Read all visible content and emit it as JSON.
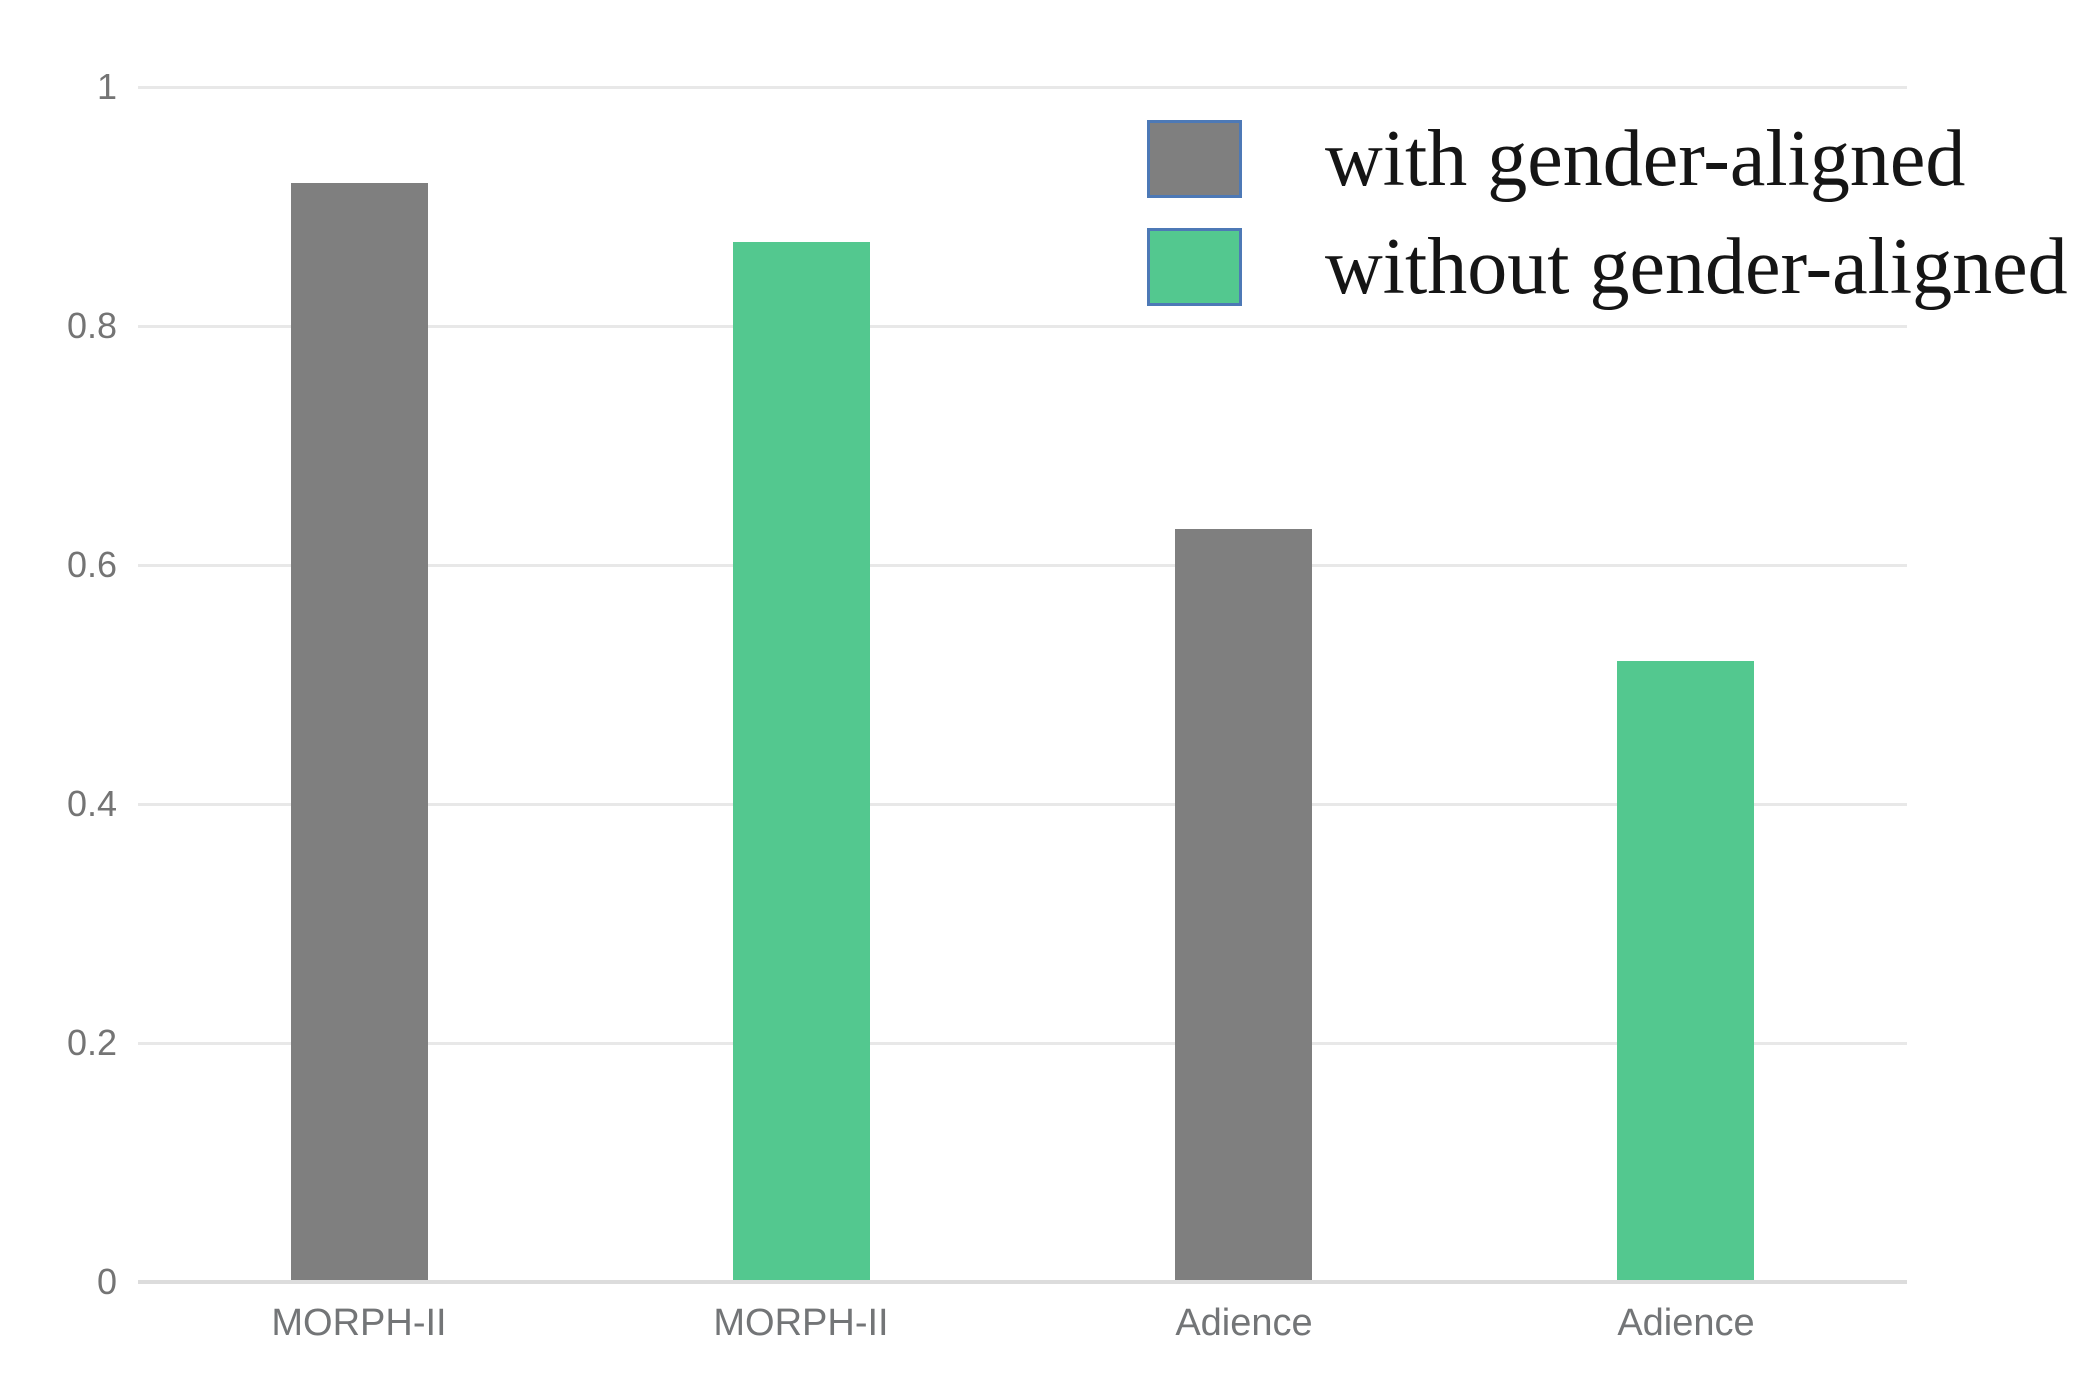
{
  "chart_data": {
    "type": "bar",
    "title": "",
    "xlabel": "",
    "ylabel": "",
    "categories": [
      "MORPH-II",
      "MORPH-II",
      "Adience",
      "Adience"
    ],
    "bars": [
      {
        "category": "MORPH-II",
        "series": "with gender-aligned",
        "value": 0.92
      },
      {
        "category": "MORPH-II",
        "series": "without gender-aligned",
        "value": 0.87
      },
      {
        "category": "Adience",
        "series": "with gender-aligned",
        "value": 0.63
      },
      {
        "category": "Adience",
        "series": "without gender-aligned",
        "value": 0.52
      }
    ],
    "series": [
      {
        "name": "with gender-aligned",
        "values": [
          0.92,
          0.63
        ],
        "categories": [
          "MORPH-II",
          "Adience"
        ]
      },
      {
        "name": "without gender-aligned",
        "values": [
          0.87,
          0.52
        ],
        "categories": [
          "MORPH-II",
          "Adience"
        ]
      }
    ],
    "y_axis": {
      "min": 0,
      "max": 1,
      "ticks": [
        0,
        0.2,
        0.4,
        0.6,
        0.8,
        1
      ],
      "tick_labels": [
        "0",
        "0.2",
        "0.4",
        "0.6",
        "0.8",
        "1"
      ]
    },
    "grid": true,
    "legend_position": "top-right",
    "legend": [
      {
        "label": "with gender-aligned",
        "color": "#7f7f7f"
      },
      {
        "label": "without gender-aligned",
        "color": "#53c88f"
      }
    ]
  },
  "colors": {
    "bar_gray": "#7f7f7f",
    "bar_green": "#53c88f",
    "legend_swatch_border": "#4d79b6",
    "gridline": "#e8e8e8",
    "axis_line": "#dcdcdc",
    "tick_text": "#747474",
    "legend_text": "#151515",
    "background": "#ffffff"
  }
}
